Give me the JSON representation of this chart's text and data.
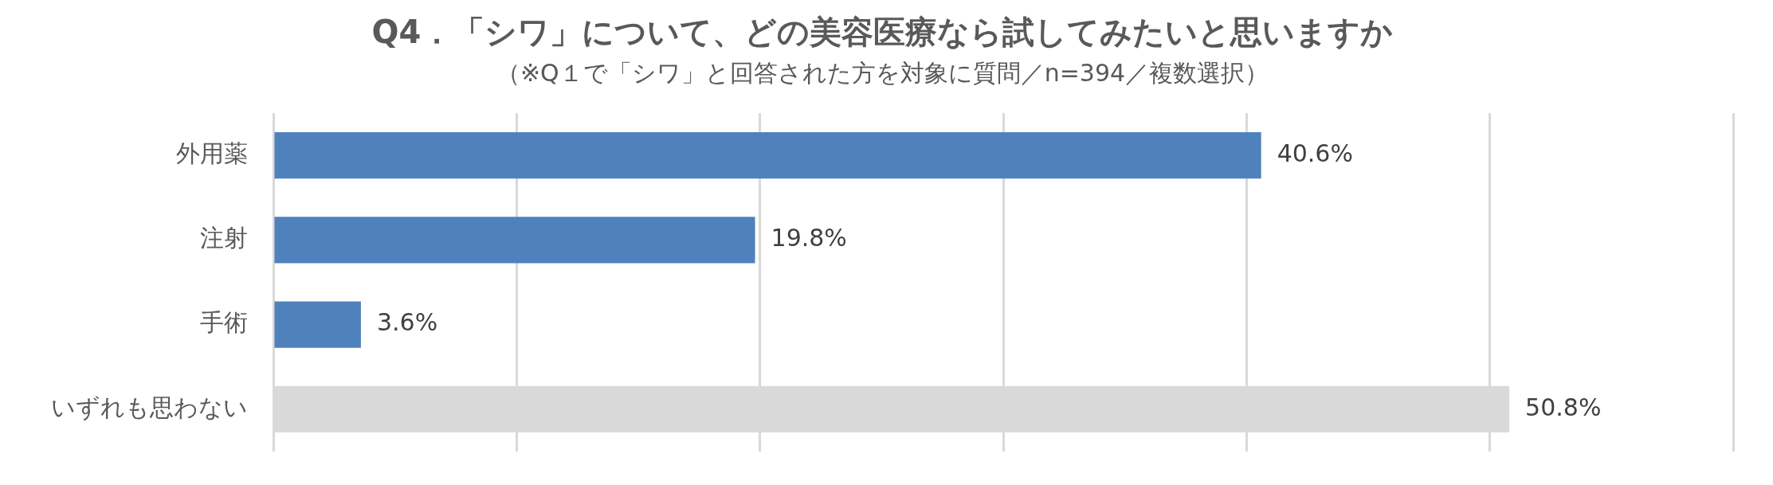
{
  "chart_data": {
    "type": "bar",
    "orientation": "horizontal",
    "title": "Q4．「シワ」について、どの美容医療なら試してみたいと思いますか",
    "subtitle": "（※Q１で「シワ」と回答された方を対象に質問／n=394／複数選択）",
    "categories": [
      "外用薬",
      "注射",
      "手術",
      "いずれも思わない"
    ],
    "values": [
      40.6,
      19.8,
      3.6,
      50.8
    ],
    "value_labels": [
      "40.6%",
      "19.8%",
      "3.6%",
      "50.8%"
    ],
    "colors": [
      "#4f81bd",
      "#4f81bd",
      "#4f81bd",
      "#d9d9d9"
    ],
    "xlim": [
      0,
      60
    ],
    "xticks": [
      {
        "value": 0,
        "label": null
      },
      {
        "value": 10,
        "label": null
      },
      {
        "value": 20,
        "label": null
      },
      {
        "value": 30,
        "label": null
      },
      {
        "value": 40,
        "label": null
      },
      {
        "value": 50,
        "label": null
      },
      {
        "value": 60,
        "label": null
      }
    ],
    "tick_labels": "y",
    "grid": "x",
    "legend": false
  }
}
